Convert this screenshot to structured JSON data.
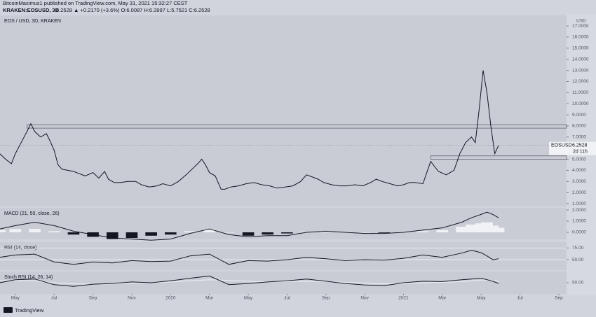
{
  "header": {
    "publisher": "BitcoinMaximus1 published on TradingView.com, May 31, 2021 15:32:27 CEST",
    "symbol": "KRAKEN:EOSUSD, 3D",
    "quote": "6.2528 ▲ +0.2170 (+3.6%) O:6.0087 H:6.3997 L:5.7521 C:6.2528",
    "brand": "TradingView"
  },
  "chart_data": [
    {
      "type": "line",
      "title": "EOS / USD, 3D, KRAKEN",
      "axis_unit": "USD",
      "x": [
        3.2,
        3.5,
        3.8,
        4.0,
        4.3,
        4.6,
        4.8,
        5.0,
        5.3,
        5.6,
        5.8,
        6.0,
        6.2,
        6.4,
        6.7,
        7.0,
        7.3,
        7.6,
        8.0,
        8.3,
        8.6,
        8.8,
        9.1,
        9.4,
        9.8,
        10.2,
        10.5,
        10.9,
        11.3,
        11.6,
        12.0,
        12.4,
        12.8,
        13.1,
        13.4,
        13.6,
        13.8,
        14.0,
        14.3,
        14.6,
        14.8,
        15.1,
        15.5,
        15.9,
        16.3,
        16.7,
        17.1,
        17.5,
        17.9,
        18.3,
        18.7,
        19.0,
        19.3,
        19.6,
        19.9,
        20.3,
        20.7,
        21.1,
        21.5,
        21.9,
        22.3,
        22.6,
        22.9,
        23.3,
        23.7,
        24.0,
        24.3,
        24.6,
        25.0,
        25.4,
        25.8,
        26.2,
        26.6,
        26.9,
        27.2,
        27.5,
        27.7,
        27.9,
        28.1,
        28.3,
        28.5,
        28.7,
        28.9
      ],
      "series": [
        {
          "name": "EOSUSD",
          "color": "#131722",
          "values": [
            5.5,
            5.0,
            4.6,
            5.5,
            6.5,
            7.5,
            8.2,
            7.5,
            7.0,
            7.3,
            6.6,
            5.8,
            4.5,
            4.1,
            4.0,
            3.9,
            3.7,
            3.5,
            3.8,
            3.3,
            3.9,
            3.2,
            2.9,
            2.9,
            3.0,
            3.0,
            2.7,
            2.5,
            2.6,
            2.8,
            2.6,
            3.0,
            3.6,
            4.1,
            4.6,
            5.0,
            4.5,
            3.8,
            3.5,
            2.3,
            2.3,
            2.5,
            2.6,
            2.8,
            2.9,
            2.7,
            2.6,
            2.4,
            2.5,
            2.6,
            3.0,
            3.6,
            3.4,
            3.2,
            2.9,
            2.7,
            2.6,
            2.6,
            2.7,
            2.6,
            2.9,
            3.2,
            3.0,
            2.8,
            2.6,
            2.7,
            2.9,
            2.9,
            2.8,
            4.8,
            3.9,
            3.6,
            4.0,
            5.5,
            6.5,
            7.0,
            6.5,
            9.5,
            13.0,
            11.0,
            8.0,
            5.5,
            6.2528
          ]
        }
      ],
      "last_label": {
        "name": "EOSUSD",
        "value": 6.2528,
        "countdown": "2d 11h"
      },
      "zones": [
        {
          "lo": 7.8,
          "hi": 8.1,
          "x0": 4.6
        },
        {
          "lo": 5.0,
          "hi": 5.3,
          "x0": 25.4
        }
      ],
      "xlim": [
        3.21,
        32.4
      ],
      "ylim": [
        0.75,
        17.95
      ],
      "xticks": [
        {
          "value": 4,
          "label": "May"
        },
        {
          "value": 6,
          "label": "Jul"
        },
        {
          "value": 8,
          "label": "Sep"
        },
        {
          "value": 10,
          "label": "Nov"
        },
        {
          "value": 12,
          "label": "2020"
        },
        {
          "value": 14,
          "label": "Mar"
        },
        {
          "value": 16,
          "label": "May"
        },
        {
          "value": 18,
          "label": "Jul"
        },
        {
          "value": 20,
          "label": "Sep"
        },
        {
          "value": 22,
          "label": "Nov"
        },
        {
          "value": 24,
          "label": "2021"
        },
        {
          "value": 26,
          "label": "Mar"
        },
        {
          "value": 28,
          "label": "May"
        },
        {
          "value": 30,
          "label": "Jul"
        },
        {
          "value": 32,
          "label": "Sep"
        }
      ],
      "yticks": [
        {
          "value": 1,
          "label": "1.0000"
        },
        {
          "value": 2,
          "label": "2.0000"
        },
        {
          "value": 3,
          "label": "3.0000"
        },
        {
          "value": 4,
          "label": "4.0000"
        },
        {
          "value": 5,
          "label": "5.0000"
        },
        {
          "value": 6,
          "label": "6.0000"
        },
        {
          "value": 7,
          "label": "7.0000"
        },
        {
          "value": 8,
          "label": "8.0000"
        },
        {
          "value": 9,
          "label": "9.0000"
        },
        {
          "value": 10,
          "label": "10.0000"
        },
        {
          "value": 11,
          "label": "11.0000"
        },
        {
          "value": 12,
          "label": "12.0000"
        },
        {
          "value": 13,
          "label": "13.0000"
        },
        {
          "value": 14,
          "label": "14.0000"
        },
        {
          "value": 15,
          "label": "15.0000"
        },
        {
          "value": 16,
          "label": "16.0000"
        },
        {
          "value": 17,
          "label": "17.0000"
        }
      ]
    },
    {
      "type": "line",
      "title": "MACD (21, 50, close, 26)",
      "x": [
        3.2,
        4,
        5,
        6,
        7,
        8,
        9,
        10,
        11,
        12,
        13,
        14,
        15,
        16,
        17,
        18,
        19,
        20,
        21,
        22,
        23,
        24,
        25,
        26,
        27,
        27.5,
        28,
        28.3,
        28.6,
        28.9
      ],
      "series": [
        {
          "name": "Histogram",
          "style": "histogram",
          "color": "#f0f2f5",
          "color_negative": "#131722",
          "values": [
            0.2,
            0.3,
            0.3,
            0.1,
            -0.2,
            -0.4,
            -0.6,
            -0.5,
            -0.3,
            -0.2,
            0.1,
            0.3,
            0,
            -0.3,
            -0.2,
            -0.1,
            0.05,
            0.1,
            0.05,
            0,
            -0.05,
            0.05,
            0.1,
            0.2,
            0.5,
            0.7,
            0.8,
            0.9,
            0.6,
            0.4
          ]
        },
        {
          "name": "MACD",
          "color": "#131722",
          "values": [
            0.3,
            0.6,
            0.9,
            0.6,
            0.1,
            -0.2,
            -0.5,
            -0.6,
            -0.7,
            -0.6,
            -0.1,
            0.3,
            -0.2,
            -0.4,
            -0.3,
            -0.3,
            0,
            0.1,
            0,
            -0.1,
            -0.1,
            0,
            0.2,
            0.4,
            0.9,
            1.3,
            1.6,
            1.8,
            1.6,
            1.3
          ]
        }
      ],
      "xlim": [
        3.21,
        32.4
      ],
      "ylim": [
        -0.625,
        2.19
      ],
      "yticks": [
        {
          "value": 0,
          "label": "0.0000"
        },
        {
          "value": 1,
          "label": "1.0000"
        },
        {
          "value": 2,
          "label": "2.0000"
        }
      ]
    },
    {
      "type": "line",
      "title": "RSI (14, close)",
      "grid": true,
      "x": [
        3.2,
        4,
        5,
        6,
        7,
        8,
        9,
        10,
        11,
        12,
        13,
        14,
        15,
        16,
        17,
        18,
        19,
        20,
        21,
        22,
        23,
        24,
        25,
        26,
        27,
        27.5,
        28,
        28.3,
        28.6,
        28.9
      ],
      "series": [
        {
          "name": "RSI",
          "color": "#131722",
          "values": [
            55,
            60,
            62,
            45,
            40,
            45,
            43,
            48,
            46,
            47,
            58,
            62,
            40,
            48,
            47,
            50,
            55,
            52,
            48,
            50,
            49,
            53,
            60,
            55,
            64,
            70,
            65,
            58,
            50,
            52
          ]
        }
      ],
      "xlim": [
        3.21,
        32.4
      ],
      "ylim": [
        27.7,
        87.5
      ],
      "yticks": [
        {
          "value": 50,
          "label": "50.00"
        },
        {
          "value": 75,
          "label": "75.00"
        }
      ]
    },
    {
      "type": "line",
      "title": "Stoch RSI (14, 26, 14)",
      "x": [
        3.2,
        4,
        5,
        6,
        7,
        8,
        9,
        10,
        11,
        12,
        13,
        14,
        15,
        16,
        17,
        18,
        19,
        20,
        21,
        22,
        23,
        24,
        25,
        26,
        27,
        27.5,
        28,
        28.3,
        28.6,
        28.9
      ],
      "series": [
        {
          "name": "Signal",
          "color": "#eef0f4",
          "values": [
            55,
            56,
            55,
            50,
            47,
            46,
            47,
            49,
            50,
            52,
            55,
            58,
            56,
            54,
            52,
            53,
            54,
            53,
            51,
            49,
            47,
            48,
            50,
            51,
            53,
            55,
            57,
            57,
            56,
            54
          ]
        },
        {
          "name": "Oscillator",
          "color": "#131722",
          "values": [
            50,
            58,
            60,
            45,
            40,
            46,
            48,
            52,
            50,
            55,
            62,
            68,
            45,
            48,
            52,
            55,
            60,
            54,
            48,
            44,
            42,
            50,
            54,
            53,
            58,
            60,
            62,
            58,
            54,
            48
          ]
        }
      ],
      "xlim": [
        3.21,
        32.4
      ],
      "ylim": [
        20,
        80
      ],
      "yticks": [
        {
          "value": 50,
          "label": "50.00"
        }
      ]
    }
  ]
}
